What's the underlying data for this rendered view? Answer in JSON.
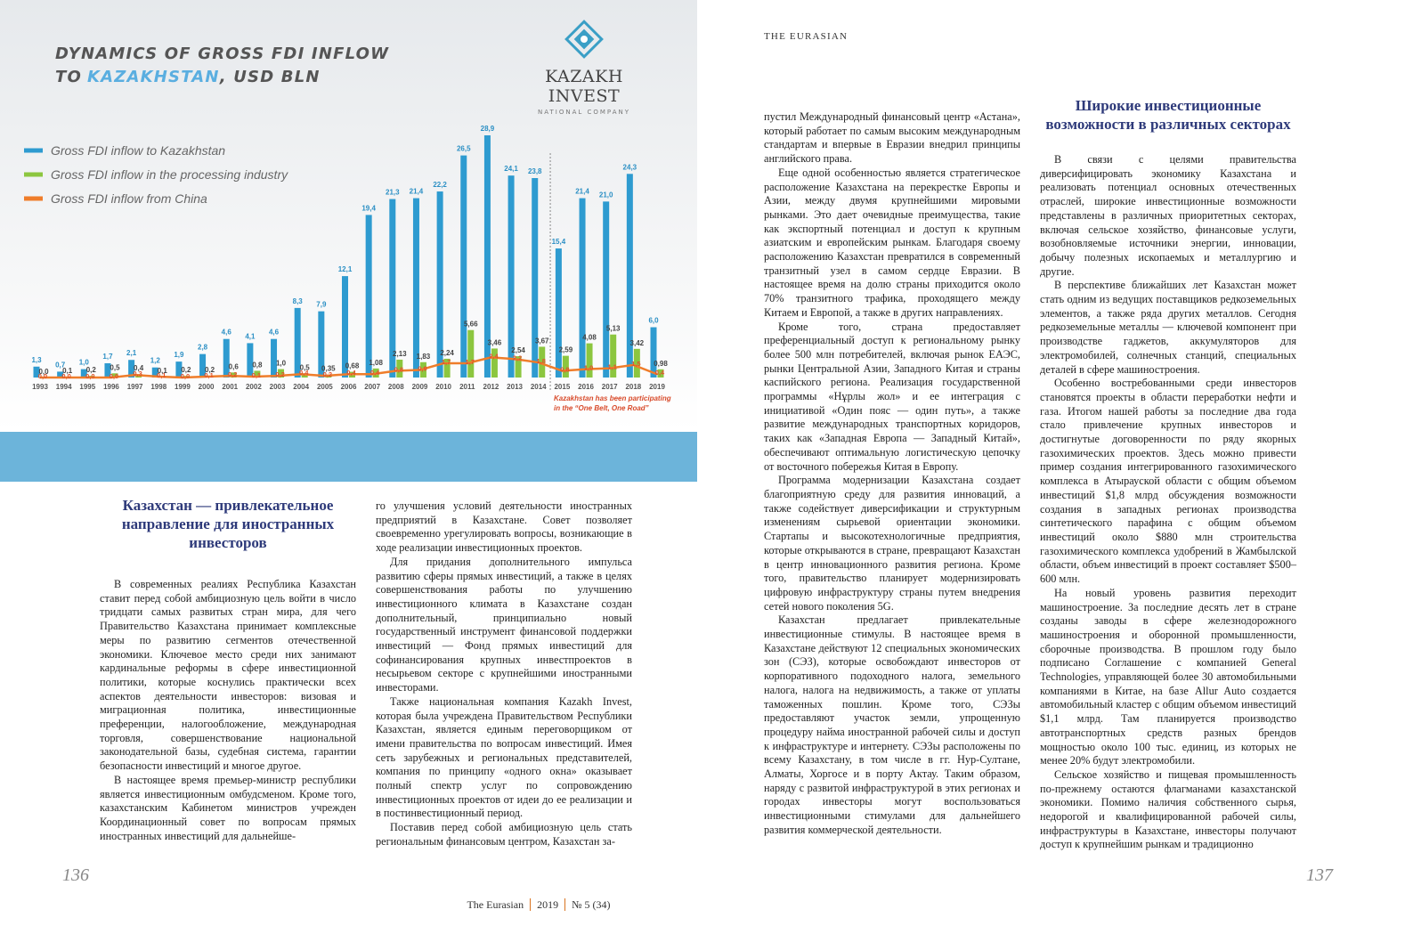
{
  "chart_data": {
    "type": "bar",
    "title": {
      "line1": "DYNAMICS OF GROSS FDI INFLOW",
      "line2_before": "TO",
      "line2_highlight": "KAZAKHSTAN",
      "line2_after": ", USD BLN"
    },
    "categories": [
      "1993",
      "1994",
      "1995",
      "1996",
      "1997",
      "1998",
      "1999",
      "2000",
      "2001",
      "2002",
      "2003",
      "2004",
      "2005",
      "2006",
      "2007",
      "2008",
      "2009",
      "2010",
      "2011",
      "2012",
      "2013",
      "2014",
      "2015",
      "2016",
      "2017",
      "2018",
      "2019"
    ],
    "series": [
      {
        "name": "Gross FDI inflow to Kazakhstan",
        "color": "#2e9bd0",
        "kind": "bar",
        "values": [
          1.3,
          0.7,
          1.0,
          1.7,
          2.1,
          1.2,
          1.9,
          2.8,
          4.6,
          4.1,
          4.6,
          8.3,
          7.9,
          12.1,
          19.4,
          21.3,
          21.4,
          22.2,
          26.5,
          28.9,
          24.1,
          23.8,
          15.4,
          21.4,
          21.0,
          24.3,
          6.0
        ],
        "value_labels": [
          "1,3",
          "0,7",
          "1,0",
          "1,7",
          "2,1",
          "1,2",
          "1,9",
          "2,8",
          "4,6",
          "4,1",
          "4,6",
          "8,3",
          "7,9",
          "12,1",
          "19,4",
          "21,3",
          "21,4",
          "22,2",
          "26,5",
          "28,9",
          "24,1",
          "23,8",
          "15,4",
          "21,4",
          "21,0",
          "24,3",
          "6,0"
        ]
      },
      {
        "name": "Gross FDI inflow in the processing industry",
        "color": "#8cc63f",
        "kind": "bar",
        "values": [
          0.0,
          0.1,
          0.2,
          0.5,
          0.4,
          0.1,
          0.2,
          0.2,
          0.6,
          0.8,
          1.0,
          0.5,
          0.35,
          0.68,
          1.08,
          2.13,
          1.83,
          2.24,
          5.66,
          3.46,
          2.54,
          3.67,
          2.59,
          4.08,
          5.13,
          3.42,
          0.98
        ],
        "value_labels": [
          "0,0",
          "0,1",
          "0,2",
          "0,5",
          "0,4",
          "0,1",
          "0,2",
          "0,2",
          "0,6",
          "0,8",
          "1,0",
          "0,5",
          "0,35",
          "0,68",
          "1,08",
          "2,13",
          "1,83",
          "2,24",
          "5,66",
          "3,46",
          "2,54",
          "3,67",
          "2,59",
          "4,08",
          "5,13",
          "3,42",
          "0,98"
        ]
      },
      {
        "name": "Gross FDI inflow from China",
        "color": "#ef7d2a",
        "kind": "line",
        "values": [
          0.0,
          0.0,
          0.0,
          0.0,
          0.3,
          0.1,
          0.0,
          0.1,
          0.2,
          0.1,
          0.2,
          0.4,
          0.2,
          0.4,
          0.4,
          0.8,
          0.9,
          1.7,
          1.7,
          2.4,
          2.2,
          1.8,
          0.8,
          1.0,
          1.1,
          1.5,
          0.4
        ],
        "value_labels": [
          "0,0",
          "0,0",
          "0,0",
          "0,0",
          "0,3",
          "0,1",
          "0,0",
          "0,1",
          "0,2",
          "0,1",
          "0,2",
          "0,4",
          "0,2",
          "0,4",
          "0,4",
          "0,8",
          "0,9",
          "1,7",
          "1,7",
          "2,4",
          "2,2",
          "1,8",
          "0,8",
          "1,0",
          "1,1",
          "1,5",
          "0,4"
        ]
      }
    ],
    "annotation": {
      "lines": [
        "Kazakhstan has been participating",
        "in the “One Belt, One Road”"
      ],
      "after_category": "2014"
    },
    "legend": "top-left"
  },
  "logo": {
    "name": "KAZAKH INVEST",
    "subtitle": "NATIONAL COMPANY"
  },
  "running_head": "THE EURASIAN",
  "left_page": {
    "heading": "Казахстан — привлекательное направление для иностранных инвесторов",
    "column1": [
      "В современных реалиях Республика Казахстан ставит перед собой амбициозную цель войти в число тридцати самых развитых стран мира, для чего Правительство Казахстана принимает комплексные меры по развитию сегментов отечественной экономики. Ключевое место среди них занимают кардинальные реформы в сфере инвестиционной политики, которые коснулись практически всех аспектов деятельности инвесторов: визовая и миграционная политика, инвестиционные преференции, налогообложение, международная торговля, совершенствование национальной законодательной базы, судебная система, гарантии безопасности инвестиций и многое другое.",
      "В настоящее время премьер-министр республики является инвестиционным омбудсменом. Кроме того, казахстанским Кабинетом министров учрежден Координационный совет по вопросам прямых иностранных инвестиций для дальнейше-"
    ],
    "column2": [
      "го улучшения условий деятельности иностранных предприятий в Казахстане. Совет позволяет своевременно урегулировать вопросы, возникающие в ходе реализации инвестиционных проектов.",
      "Для придания дополнительного импульса развитию сферы прямых инвестиций, а также в целях совершенствования работы по улучшению инвестиционного климата в Казахстане создан дополнительный, принципиально новый государственный инструмент финансовой поддержки инвестиций — Фонд прямых инвестиций для софинансирования крупных инвестпроектов в несырьевом секторе с крупнейшими иностранными инвесторами.",
      "Также национальная компания Kazakh Invest, которая была учреждена Правительством Республики Казахстан, является единым переговорщиком от имени правительства по вопросам инвестиций. Имея сеть зарубежных и региональных представителей, компания по принципу «одного окна» оказывает полный спектр услуг по сопровождению инвестиционных проектов от идеи до ее реализации и в постинвестиционный период.",
      "Поставив перед собой амбициозную цель стать региональным финансовым центром, Казахстан за-"
    ],
    "page_number": "136"
  },
  "right_page": {
    "column1": [
      "пустил Международный финансовый центр «Астана», который работает по самым высоким международным стандартам и впервые в Евразии внедрил принципы английского права.",
      "Еще одной особенностью является стратегическое расположение Казахстана на перекрестке Европы и Азии, между двумя крупнейшими мировыми рынками. Это дает очевидные преимущества, такие как экспортный потенциал и доступ к крупным азиатским и европейским рынкам. Благодаря своему расположению Казахстан превратился в современный транзитный узел в самом сердце Евразии. В настоящее время на долю страны приходится около 70% транзитного трафика, проходящего между Китаем и Европой, а также в других направлениях.",
      "Кроме того, страна предоставляет преференциальный доступ к региональному рынку более 500 млн потребителей, включая рынок ЕАЭС, рынки Центральной Азии, Западного Китая и страны каспийского региона. Реализация государственной программы «Нұрлы жол» и ее интеграция с инициативой «Один пояс — один путь», а также развитие международных транспортных коридоров, таких как «Западная Европа — Западный Китай», обеспечивают оптимальную логистическую цепочку от восточного побережья Китая в Европу.",
      "Программа модернизации Казахстана создает благоприятную среду для развития инноваций, а также содействует диверсификации и структурным изменениям сырьевой ориентации экономики. Стартапы и высокотехнологичные предприятия, которые открываются в стране, превращают Казахстан в центр инновационного развития региона. Кроме того, правительство планирует модернизировать цифровую инфраструктуру страны путем внедрения сетей нового поколения 5G.",
      "Казахстан предлагает привлекательные инвестиционные стимулы. В настоящее время в Казахстане действуют 12 специальных экономических зон (СЭЗ), которые освобождают инвесторов от корпоративного подоходного налога, земельного налога, налога на недвижимость, а также от уплаты таможенных пошлин. Кроме того, СЭЗы предоставляют участок земли, упрощенную процедуру найма иностранной рабочей силы и доступ к инфраструктуре и интернету. СЭЗы расположены по всему Казахстану, в том числе в гг. Нур-Султане, Алматы, Хоргосе и в порту Актау. Таким образом, наряду с развитой инфраструктурой в этих регионах и городах инвесторы могут воспользоваться инвестиционными стимулами для дальнейшего развития коммерческой деятельности."
    ],
    "heading": "Широкие инвестиционные возможности в различных секторах",
    "column2": [
      "В связи с целями правительства диверсифицировать экономику Казахстана и реализовать потенциал основных отечественных отраслей, широкие инвестиционные возможности представлены в различных приоритетных секторах, включая сельское хозяйство, финансовые услуги, возобновляемые источники энергии, инновации, добычу полезных ископаемых и металлургию и другие.",
      "В перспективе ближайших лет Казахстан может стать одним из ведущих поставщиков редкоземельных элементов, а также ряда других металлов. Сегодня редкоземельные металлы — ключевой компонент при производстве гаджетов, аккумуляторов для электромобилей, солнечных станций, специальных деталей в сфере машиностроения.",
      "Особенно востребованными среди инвесторов становятся проекты в области переработки нефти и газа. Итогом нашей работы за последние два года стало привлечение крупных инвесторов и достигнутые договоренности по ряду якорных газохимических проектов. Здесь можно привести пример создания интегрированного газохимического комплекса в Атырауской области с общим объемом инвестиций $1,8 млрд обсуждения возможности создания в западных регионах производства синтетического парафина с общим объемом инвестиций около $880 млн строительства газохимического комплекса удобрений в Жамбылской области, объем инвестиций в проект составляет $500–600 млн.",
      "На новый уровень развития переходит машиностроение. За последние десять лет в стране созданы заводы в сфере железнодорожного машиностроения и оборонной промышленности, сборочные производства. В прошлом году было подписано Соглашение с компанией General Technologies, управляющей более 30 автомобильными компаниями в Китае, на базе Allur Auto создается автомобильный кластер с общим объемом инвестиций $1,1 млрд. Там планируется производство автотранспортных средств разных брендов мощностью около 100 тыс. единиц, из которых не менее 20% будут электромобили.",
      "Сельское хозяйство и пищевая промышленность по-прежнему остаются флагманами казахстанской экономики. Помимо наличия собственного сырья, недорогой и квалифицированной рабочей силы, инфраструктуры в Казахстане, инвесторы получают доступ к крупнейшим рынкам и традиционно"
    ],
    "page_number": "137"
  },
  "footer": {
    "magazine": "The Eurasian",
    "year": "2019",
    "issue": "№ 5 (34)"
  }
}
